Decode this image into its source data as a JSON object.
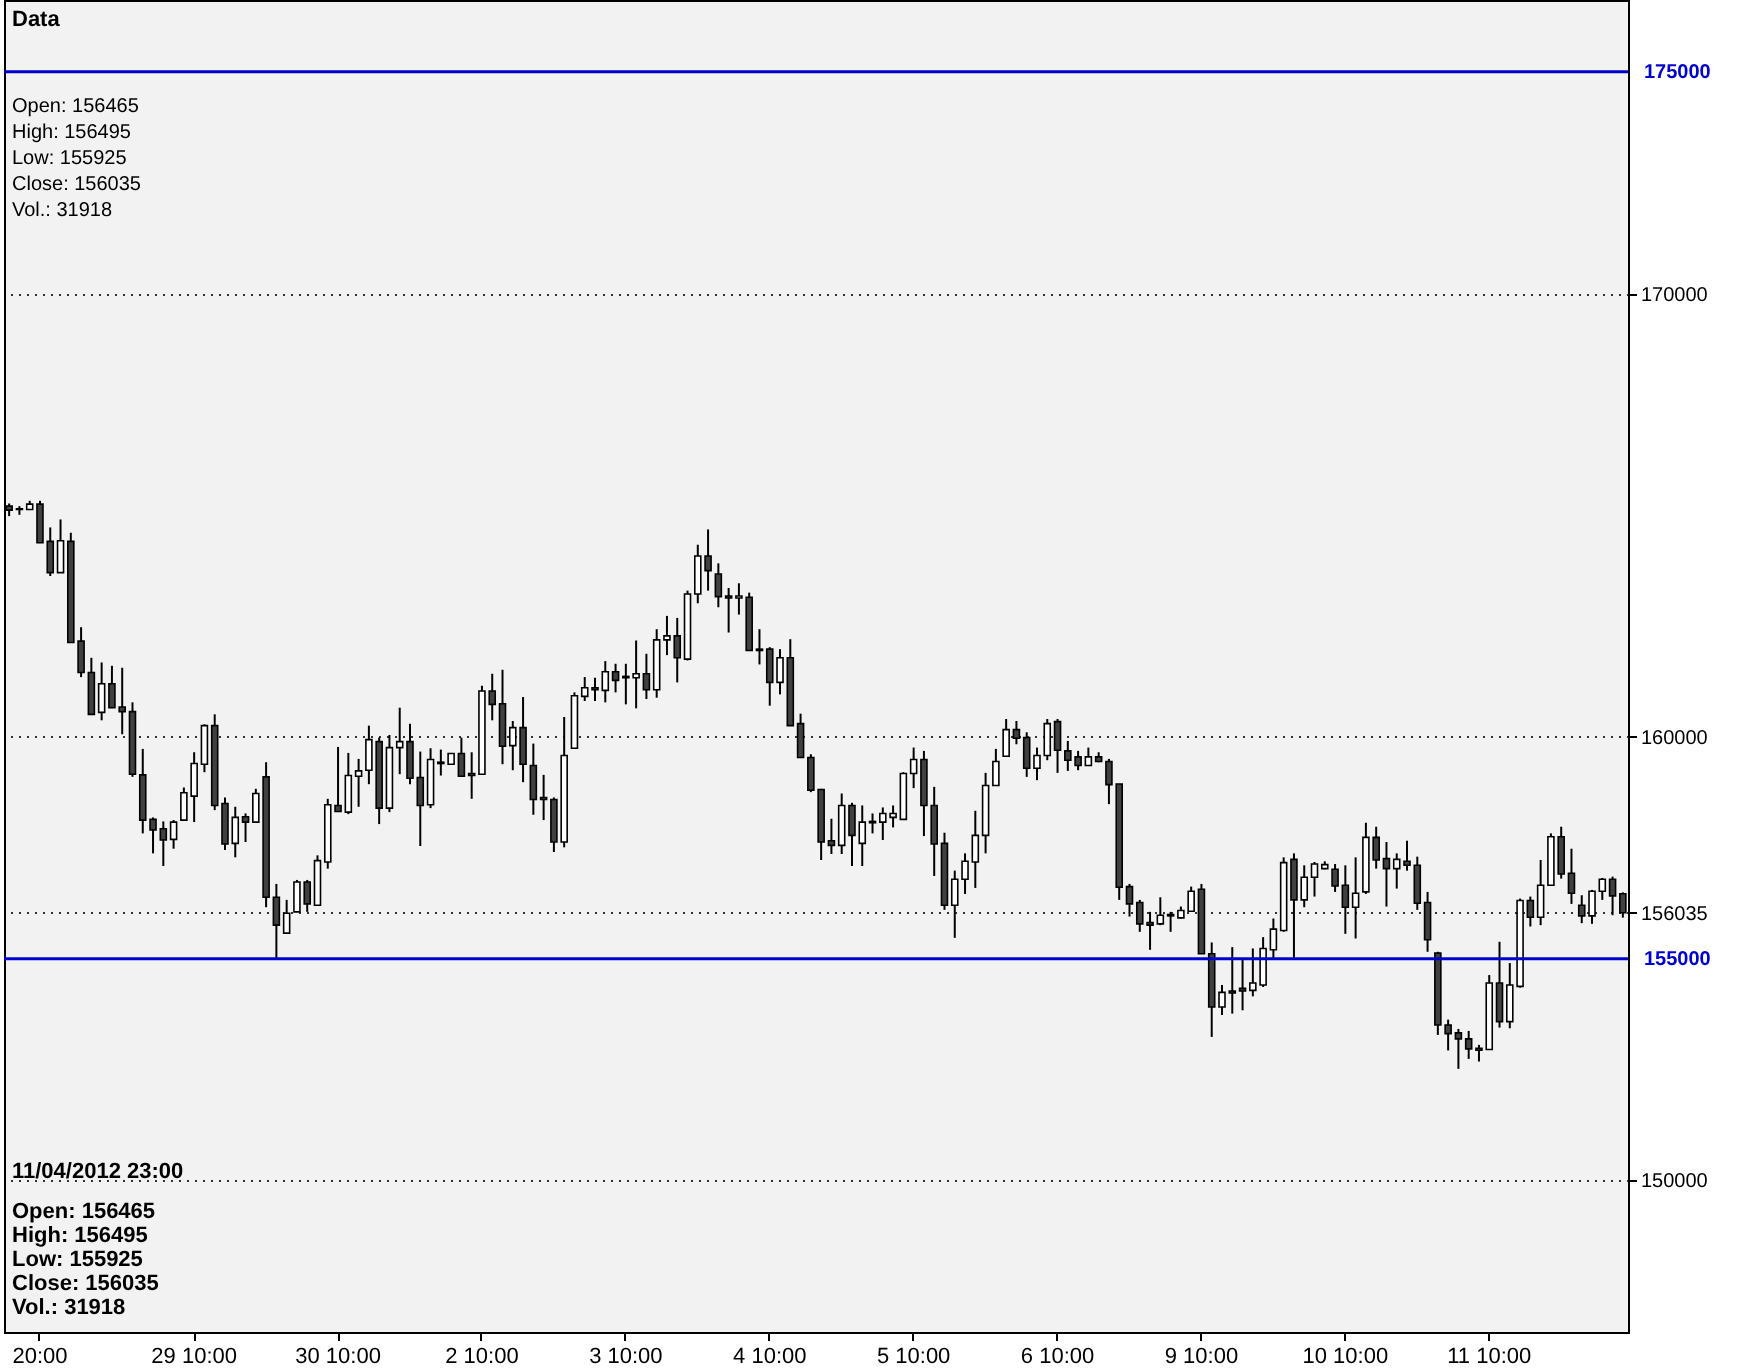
{
  "chart_data": {
    "type": "candlestick",
    "categories": [
      null,
      null,
      null,
      "20:00",
      null,
      null,
      null,
      null,
      null,
      null,
      null,
      null,
      null,
      null,
      null,
      null,
      null,
      null,
      "29 10:00",
      null,
      null,
      null,
      null,
      null,
      null,
      null,
      null,
      null,
      null,
      null,
      null,
      null,
      "30 10:00",
      null,
      null,
      null,
      null,
      null,
      null,
      null,
      null,
      null,
      null,
      null,
      null,
      null,
      "2 10:00",
      null,
      null,
      null,
      null,
      null,
      null,
      null,
      null,
      null,
      null,
      null,
      null,
      null,
      "3 10:00",
      null,
      null,
      null,
      null,
      null,
      null,
      null,
      null,
      null,
      null,
      null,
      null,
      null,
      "4 10:00",
      null,
      null,
      null,
      null,
      null,
      null,
      null,
      null,
      null,
      null,
      null,
      null,
      null,
      "5 10:00",
      null,
      null,
      null,
      null,
      null,
      null,
      null,
      null,
      null,
      null,
      null,
      null,
      null,
      "6 10:00",
      null,
      null,
      null,
      null,
      null,
      null,
      null,
      null,
      null,
      null,
      null,
      null,
      null,
      "9 10:00",
      null,
      null,
      null,
      null,
      null,
      null,
      null,
      null,
      null,
      null,
      null,
      null,
      null,
      "10 10:00",
      null,
      null,
      null,
      null,
      null,
      null,
      null,
      null,
      null,
      null,
      null,
      null,
      null,
      "11 10:00",
      null,
      null,
      null,
      null,
      null,
      null,
      null,
      null,
      null,
      null,
      null,
      null,
      null
    ],
    "ohlc": [
      [
        165205,
        165265,
        164980,
        165115
      ],
      [
        165145,
        165205,
        165010,
        165130
      ],
      [
        165130,
        165325,
        165130,
        165250
      ],
      [
        165250,
        165325,
        164380,
        164380
      ],
      [
        164410,
        164725,
        163630,
        163705
      ],
      [
        163705,
        164905,
        163705,
        164425
      ],
      [
        164410,
        164605,
        162130,
        162130
      ],
      [
        162160,
        162475,
        161350,
        161455
      ],
      [
        161455,
        161785,
        160510,
        160510
      ],
      [
        160555,
        161680,
        160375,
        161200
      ],
      [
        161200,
        161605,
        160660,
        160660
      ],
      [
        160675,
        161560,
        160060,
        160570
      ],
      [
        160570,
        160780,
        159100,
        159160
      ],
      [
        159145,
        159730,
        157825,
        158125
      ],
      [
        158140,
        158185,
        157375,
        157900
      ],
      [
        157930,
        158095,
        157090,
        157675
      ],
      [
        157690,
        158125,
        157480,
        158080
      ],
      [
        158125,
        158860,
        158125,
        158740
      ],
      [
        158665,
        159655,
        158080,
        159400
      ],
      [
        159385,
        160285,
        159205,
        160255
      ],
      [
        160255,
        160510,
        158350,
        158455
      ],
      [
        158500,
        158635,
        157450,
        157585
      ],
      [
        157600,
        158425,
        157285,
        158185
      ],
      [
        158200,
        158275,
        157630,
        158080
      ],
      [
        158080,
        158830,
        158080,
        158725
      ],
      [
        159100,
        159430,
        156160,
        156385
      ],
      [
        156385,
        156685,
        155005,
        155755
      ],
      [
        155575,
        156325,
        155575,
        156025
      ],
      [
        156055,
        156775,
        156055,
        156730
      ],
      [
        156730,
        156775,
        156055,
        156235
      ],
      [
        156205,
        157330,
        156205,
        157210
      ],
      [
        157180,
        158605,
        157030,
        158470
      ],
      [
        158455,
        159775,
        158320,
        158320
      ],
      [
        158305,
        159640,
        158260,
        159130
      ],
      [
        159115,
        159505,
        158425,
        159235
      ],
      [
        159250,
        160255,
        158935,
        159940
      ],
      [
        159895,
        159985,
        158035,
        158395
      ],
      [
        158395,
        160045,
        158305,
        159760
      ],
      [
        159760,
        160660,
        159160,
        159895
      ],
      [
        159895,
        160300,
        158935,
        159070
      ],
      [
        159085,
        159670,
        157540,
        158455
      ],
      [
        158470,
        159745,
        158395,
        159490
      ],
      [
        159430,
        159715,
        159130,
        159400
      ],
      [
        159385,
        159625,
        159385,
        159625
      ],
      [
        159625,
        159985,
        159115,
        159115
      ],
      [
        159175,
        159655,
        158605,
        159130
      ],
      [
        159160,
        161155,
        159160,
        161035
      ],
      [
        161035,
        161425,
        160375,
        160735
      ],
      [
        160750,
        161515,
        159385,
        159790
      ],
      [
        159805,
        160360,
        159250,
        160210
      ],
      [
        160210,
        160900,
        158980,
        159385
      ],
      [
        159355,
        159850,
        158245,
        158590
      ],
      [
        158635,
        159145,
        158125,
        158590
      ],
      [
        158590,
        158635,
        157405,
        157630
      ],
      [
        157630,
        160450,
        157510,
        159580
      ],
      [
        159745,
        161005,
        159745,
        160930
      ],
      [
        160915,
        161350,
        160810,
        161110
      ],
      [
        161110,
        161335,
        160810,
        161065
      ],
      [
        161050,
        161710,
        160780,
        161470
      ],
      [
        161470,
        161650,
        161005,
        161275
      ],
      [
        161365,
        161650,
        160735,
        161335
      ],
      [
        161335,
        162175,
        160645,
        161425
      ],
      [
        161425,
        161875,
        160855,
        161065
      ],
      [
        161065,
        162430,
        160885,
        162190
      ],
      [
        162190,
        162730,
        161845,
        162280
      ],
      [
        162280,
        162685,
        161230,
        161785
      ],
      [
        161755,
        163300,
        161725,
        163225
      ],
      [
        163225,
        164335,
        163015,
        164080
      ],
      [
        164080,
        164680,
        163300,
        163750
      ],
      [
        163675,
        163915,
        162925,
        163165
      ],
      [
        163180,
        163360,
        162355,
        163135
      ],
      [
        163135,
        163465,
        162760,
        163180
      ],
      [
        163150,
        163255,
        161950,
        161950
      ],
      [
        161980,
        162430,
        161635,
        161950
      ],
      [
        161980,
        162025,
        160705,
        161230
      ],
      [
        161230,
        161980,
        160960,
        161785
      ],
      [
        161785,
        162205,
        160255,
        160255
      ],
      [
        160300,
        160525,
        159535,
        159535
      ],
      [
        159535,
        159610,
        158755,
        158800
      ],
      [
        158815,
        158830,
        157225,
        157630
      ],
      [
        157660,
        158155,
        157360,
        157555
      ],
      [
        157555,
        158725,
        157360,
        158455
      ],
      [
        158455,
        158515,
        157090,
        157780
      ],
      [
        157600,
        158455,
        157090,
        158080
      ],
      [
        158095,
        158275,
        157825,
        158065
      ],
      [
        158080,
        158410,
        157675,
        158275
      ],
      [
        158185,
        158455,
        157960,
        158275
      ],
      [
        158140,
        159205,
        158140,
        159175
      ],
      [
        159175,
        159760,
        158845,
        159490
      ],
      [
        159490,
        159685,
        157765,
        158455
      ],
      [
        158455,
        158875,
        156865,
        157585
      ],
      [
        157600,
        157840,
        156100,
        156205
      ],
      [
        156205,
        156985,
        155470,
        156790
      ],
      [
        156790,
        157375,
        156460,
        157195
      ],
      [
        157180,
        158335,
        156595,
        157780
      ],
      [
        157780,
        159190,
        157375,
        158905
      ],
      [
        158905,
        159730,
        158905,
        159445
      ],
      [
        159565,
        160405,
        159565,
        160165
      ],
      [
        160165,
        160360,
        159835,
        159970
      ],
      [
        159985,
        160105,
        159100,
        159295
      ],
      [
        159295,
        159760,
        159025,
        159580
      ],
      [
        159580,
        160405,
        159475,
        160300
      ],
      [
        160345,
        160405,
        159190,
        159700
      ],
      [
        159685,
        159910,
        159235,
        159475
      ],
      [
        159550,
        159685,
        159250,
        159355
      ],
      [
        159355,
        159760,
        159355,
        159550
      ],
      [
        159550,
        159655,
        159430,
        159445
      ],
      [
        159445,
        159505,
        158485,
        158925
      ],
      [
        158940,
        158940,
        156325,
        156610
      ],
      [
        156625,
        156685,
        155950,
        156235
      ],
      [
        156265,
        156325,
        155605,
        155785
      ],
      [
        155815,
        156055,
        155200,
        155755
      ],
      [
        155785,
        156385,
        155755,
        155980
      ],
      [
        155995,
        156055,
        155605,
        155965
      ],
      [
        155920,
        156175,
        155905,
        156085
      ],
      [
        156070,
        156625,
        156070,
        156520
      ],
      [
        156565,
        156685,
        155110,
        155110
      ],
      [
        155110,
        155365,
        153235,
        153910
      ],
      [
        153910,
        154405,
        153730,
        154240
      ],
      [
        154270,
        155260,
        153760,
        154225
      ],
      [
        154330,
        154975,
        153835,
        154270
      ],
      [
        154285,
        155230,
        154150,
        154450
      ],
      [
        154405,
        155485,
        154360,
        155230
      ],
      [
        155200,
        155905,
        155005,
        155665
      ],
      [
        155635,
        157285,
        155605,
        157165
      ],
      [
        157240,
        157375,
        155005,
        156325
      ],
      [
        156325,
        157105,
        156160,
        156835
      ],
      [
        156835,
        157180,
        156400,
        157135
      ],
      [
        157030,
        157195,
        157015,
        157120
      ],
      [
        157015,
        157135,
        156505,
        156640
      ],
      [
        156655,
        157105,
        155560,
        156160
      ],
      [
        156160,
        157285,
        155455,
        156475
      ],
      [
        156505,
        158065,
        156460,
        157735
      ],
      [
        157735,
        157975,
        157030,
        157225
      ],
      [
        157255,
        157630,
        156175,
        157030
      ],
      [
        157030,
        157375,
        156580,
        157240
      ],
      [
        157195,
        157660,
        156985,
        157105
      ],
      [
        157105,
        157300,
        156100,
        156250
      ],
      [
        156265,
        156505,
        155155,
        155425
      ],
      [
        155125,
        155155,
        153280,
        153505
      ],
      [
        153505,
        153625,
        152930,
        153310
      ],
      [
        153325,
        153415,
        152515,
        153190
      ],
      [
        153190,
        153370,
        152740,
        152965
      ],
      [
        152980,
        153055,
        152680,
        152935
      ],
      [
        152950,
        154630,
        152950,
        154450
      ],
      [
        154450,
        155380,
        153445,
        153580
      ],
      [
        153580,
        154900,
        153430,
        154405
      ],
      [
        154375,
        156355,
        154345,
        156310
      ],
      [
        156310,
        156400,
        155725,
        155935
      ],
      [
        155935,
        157225,
        155755,
        156655
      ],
      [
        156655,
        157825,
        156655,
        157750
      ],
      [
        157750,
        157975,
        156805,
        156910
      ],
      [
        156925,
        157480,
        156235,
        156475
      ],
      [
        156205,
        156430,
        155800,
        155965
      ],
      [
        155965,
        156550,
        155785,
        156520
      ],
      [
        156520,
        156820,
        156325,
        156790
      ],
      [
        156790,
        156850,
        155980,
        156415
      ],
      [
        156465,
        156495,
        155925,
        156035
      ]
    ],
    "ylim": [
      146580,
      176620
    ],
    "yticks": [
      150000,
      156035,
      160000,
      170000
    ],
    "grid": "y",
    "ref_lines": [
      {
        "axis": "y",
        "value": 175000,
        "label": "175000",
        "color": "#0000cc"
      },
      {
        "axis": "y",
        "value": 155000,
        "label": "155000",
        "color": "#0000cc"
      }
    ],
    "annotations": [
      "Data",
      "Open: 156465",
      "High: 156495",
      "Low: 155925",
      "Close: 156035",
      "Vol.: 31918",
      "11/04/2012 23:00",
      "Open: 156465",
      "High: 156495",
      "Low: 155925",
      "Close: 156035",
      "Vol.: 31918"
    ]
  }
}
